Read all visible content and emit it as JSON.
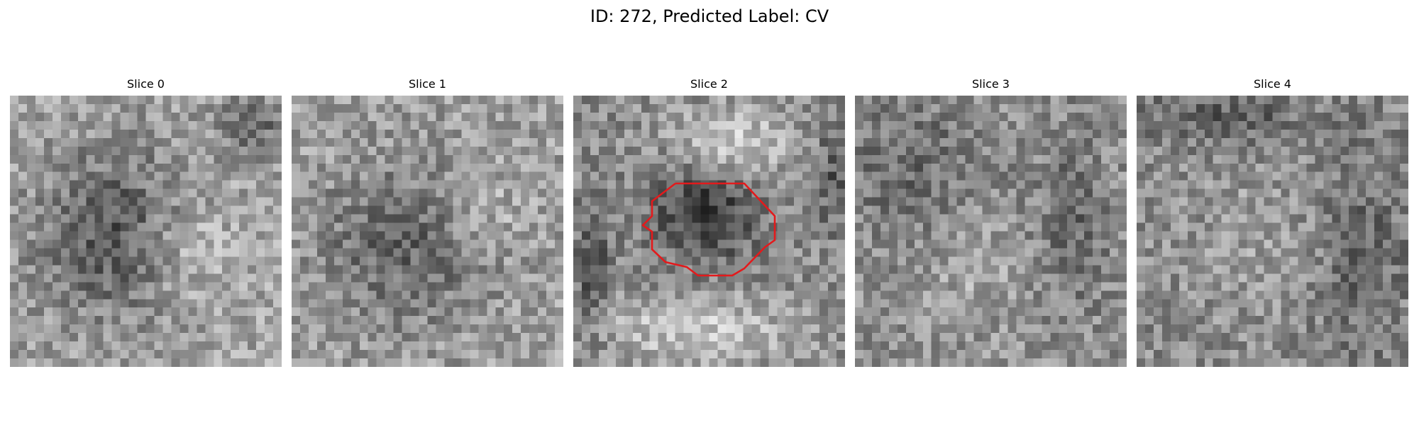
{
  "figure": {
    "title": "ID: 272, Predicted Label: CV"
  },
  "panels": [
    {
      "title": "Slice 0",
      "has_contour": false
    },
    {
      "title": "Slice 1",
      "has_contour": false
    },
    {
      "title": "Slice 2",
      "has_contour": true
    },
    {
      "title": "Slice 3",
      "has_contour": false
    },
    {
      "title": "Slice 4",
      "has_contour": false
    }
  ],
  "colors": {
    "contour": "#e31a1c",
    "background": "#ffffff"
  }
}
